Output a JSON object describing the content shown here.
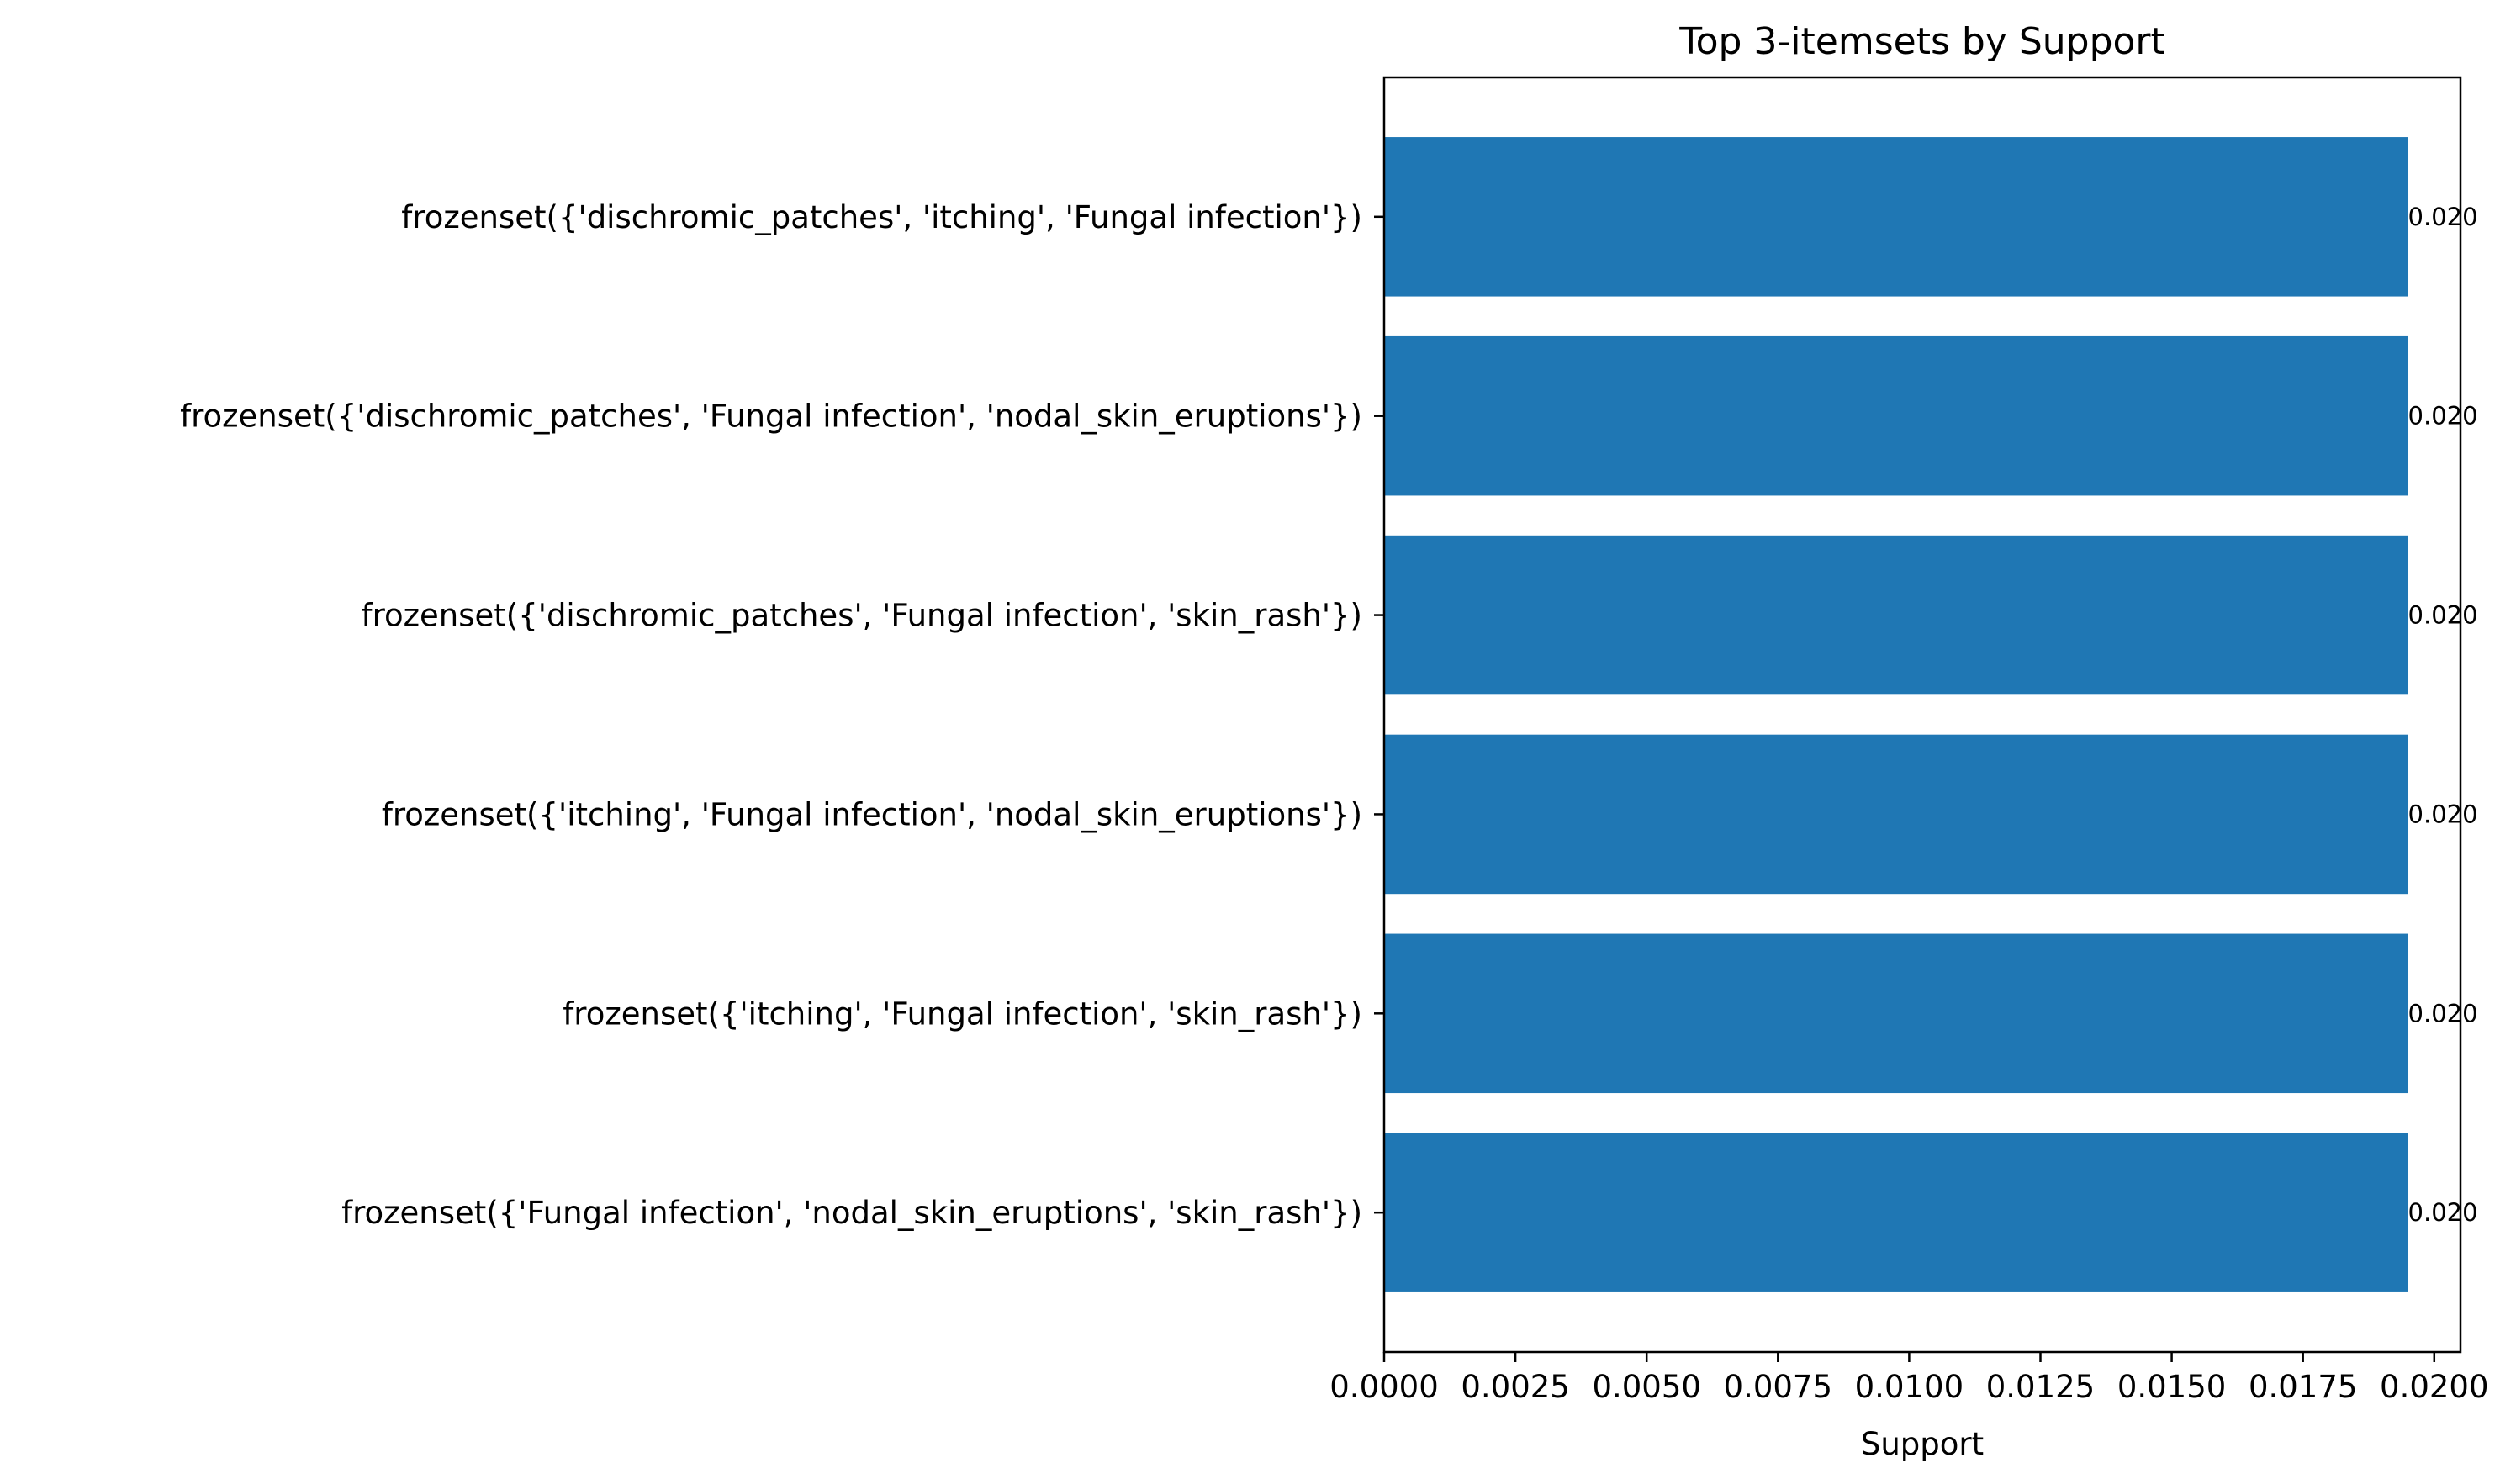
{
  "chart_data": {
    "type": "bar",
    "orientation": "horizontal",
    "title": "Top 3-itemsets by Support",
    "xlabel": "Support",
    "ylabel": "",
    "categories": [
      "frozenset({'dischromic_patches', 'itching', 'Fungal infection'})",
      "frozenset({'dischromic_patches', 'Fungal infection', 'nodal_skin_eruptions'})",
      "frozenset({'dischromic_patches', 'Fungal infection', 'skin_rash'})",
      "frozenset({'itching', 'Fungal infection', 'nodal_skin_eruptions'})",
      "frozenset({'itching', 'Fungal infection', 'skin_rash'})",
      "frozenset({'Fungal infection', 'nodal_skin_eruptions', 'skin_rash'})"
    ],
    "values": [
      0.0195,
      0.0195,
      0.0195,
      0.0195,
      0.0195,
      0.0195
    ],
    "data_labels": [
      "0.020",
      "0.020",
      "0.020",
      "0.020",
      "0.020",
      "0.020"
    ],
    "xlim": [
      0,
      0.0205
    ],
    "xticks": [
      0.0,
      0.0025,
      0.005,
      0.0075,
      0.01,
      0.0125,
      0.015,
      0.0175,
      0.02
    ],
    "xtick_labels": [
      "0.0000",
      "0.0025",
      "0.0050",
      "0.0075",
      "0.0100",
      "0.0125",
      "0.0150",
      "0.0175",
      "0.0200"
    ],
    "grid": false,
    "legend": "none",
    "bar_color": "#1f77b4"
  }
}
